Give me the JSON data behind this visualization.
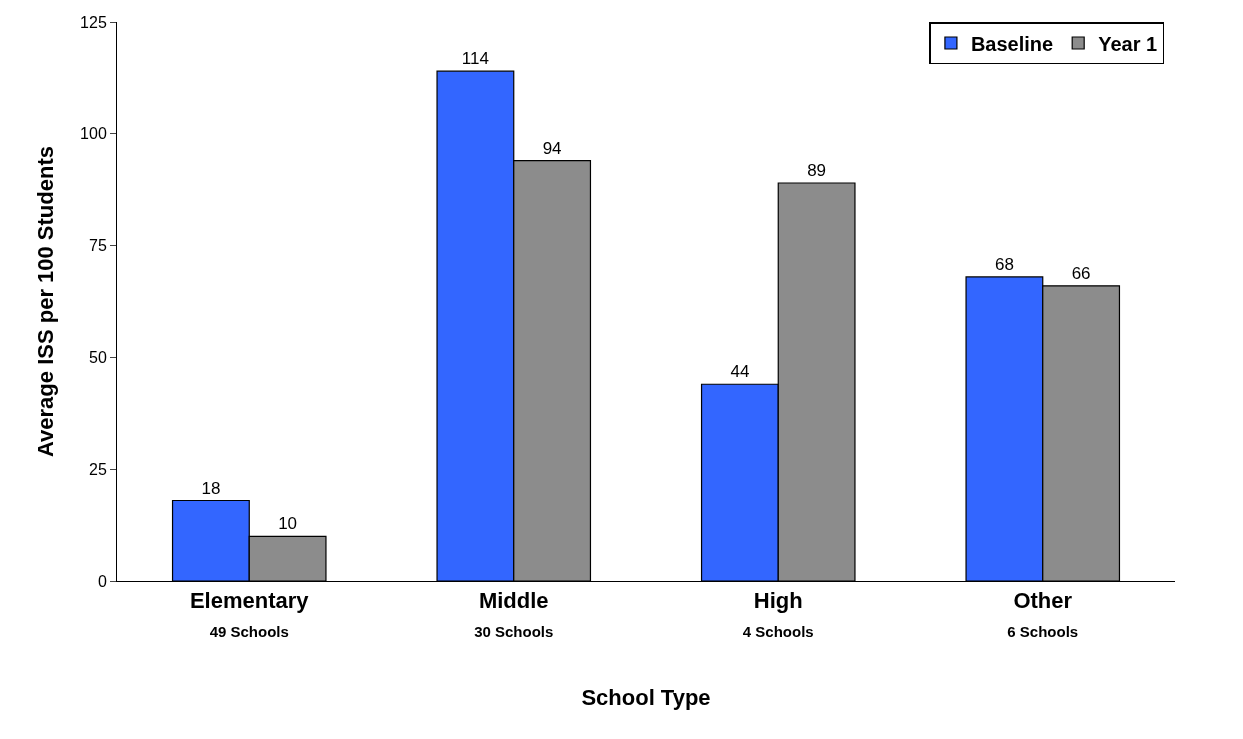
{
  "chart_data": {
    "type": "bar",
    "xlabel": "School Type",
    "ylabel": "Average ISS per 100 Students",
    "categories": [
      "Elementary\n49 Schools",
      "Middle\n30 Schools",
      "High\n4 Schools",
      "Other\n6 Schools"
    ],
    "series": [
      {
        "name": "Baseline",
        "color": "#3366ff",
        "values": [
          18,
          114,
          44,
          68
        ]
      },
      {
        "name": "Year 1",
        "color": "#8c8c8c",
        "values": [
          10,
          94,
          89,
          66
        ]
      }
    ],
    "ylim": [
      0,
      125
    ],
    "yticks": [
      0,
      25,
      50,
      75,
      100,
      125
    ],
    "grid": false,
    "legend": "top right",
    "data_labels": true
  }
}
